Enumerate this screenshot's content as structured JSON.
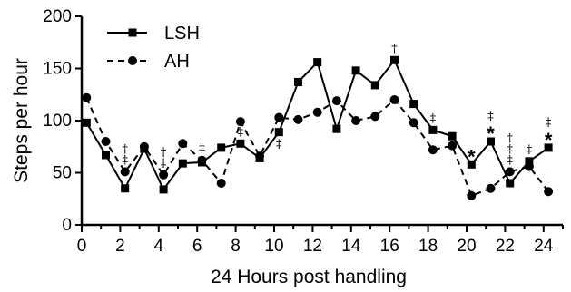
{
  "chart_data": {
    "type": "line",
    "title": "",
    "xlabel": "24 Hours post handling",
    "ylabel": "Steps per hour",
    "xlim": [
      0,
      25
    ],
    "ylim": [
      0,
      200
    ],
    "xticks": [
      0,
      2,
      4,
      6,
      8,
      10,
      12,
      14,
      16,
      18,
      20,
      22,
      24
    ],
    "yticks": [
      0,
      50,
      100,
      150,
      200
    ],
    "grid": false,
    "legend_position": "top-left",
    "series": [
      {
        "name": "LSH",
        "marker": "square",
        "line_style": "solid",
        "x": [
          0.25,
          1.25,
          2.25,
          3.25,
          4.25,
          5.25,
          6.25,
          7.25,
          8.25,
          9.25,
          10.25,
          11.25,
          12.25,
          13.25,
          14.25,
          15.25,
          16.25,
          17.25,
          18.25,
          19.25,
          20.25,
          21.25,
          22.25,
          23.25,
          24.25
        ],
        "values": [
          98,
          67,
          35,
          73,
          34,
          59,
          60,
          74,
          78,
          64,
          89,
          137,
          156,
          92,
          148,
          134,
          158,
          116,
          91,
          85,
          58,
          80,
          40,
          61,
          74
        ]
      },
      {
        "name": "AH",
        "marker": "circle",
        "line_style": "dashed",
        "x": [
          0.25,
          1.25,
          2.25,
          3.25,
          4.25,
          5.25,
          6.25,
          7.25,
          8.25,
          9.25,
          10.25,
          11.25,
          12.25,
          13.25,
          14.25,
          15.25,
          16.25,
          17.25,
          18.25,
          19.25,
          20.25,
          21.25,
          22.25,
          23.25,
          24.25
        ],
        "values": [
          122,
          80,
          51,
          75,
          48,
          78,
          62,
          40,
          99,
          66,
          103,
          101,
          108,
          119,
          100,
          104,
          120,
          98,
          72,
          76,
          28,
          35,
          51,
          56,
          32
        ]
      }
    ],
    "annotations": [
      {
        "x": 2.25,
        "above": 51,
        "marks": [
          "‡",
          "†"
        ]
      },
      {
        "x": 4.25,
        "above": 48,
        "marks": [
          "‡",
          "†"
        ]
      },
      {
        "x": 6.25,
        "above": 62,
        "marks": [
          "‡"
        ]
      },
      {
        "x": 8.25,
        "above": 78,
        "marks": [
          "‡"
        ]
      },
      {
        "x": 10.25,
        "above": 66,
        "marks": [
          "‡"
        ]
      },
      {
        "x": 16.25,
        "above": 158,
        "marks": [
          "†"
        ]
      },
      {
        "x": 18.25,
        "above": 91,
        "marks": [
          "‡"
        ]
      },
      {
        "x": 20.25,
        "above": 58,
        "marks": [
          "*"
        ]
      },
      {
        "x": 21.25,
        "above": 80,
        "marks": [
          "*",
          "‡"
        ]
      },
      {
        "x": 22.25,
        "above": 51,
        "marks": [
          "‡",
          "‡",
          "†"
        ]
      },
      {
        "x": 23.25,
        "above": 61,
        "marks": [
          "‡"
        ]
      },
      {
        "x": 24.25,
        "above": 74,
        "marks": [
          "*",
          "‡"
        ]
      }
    ]
  }
}
